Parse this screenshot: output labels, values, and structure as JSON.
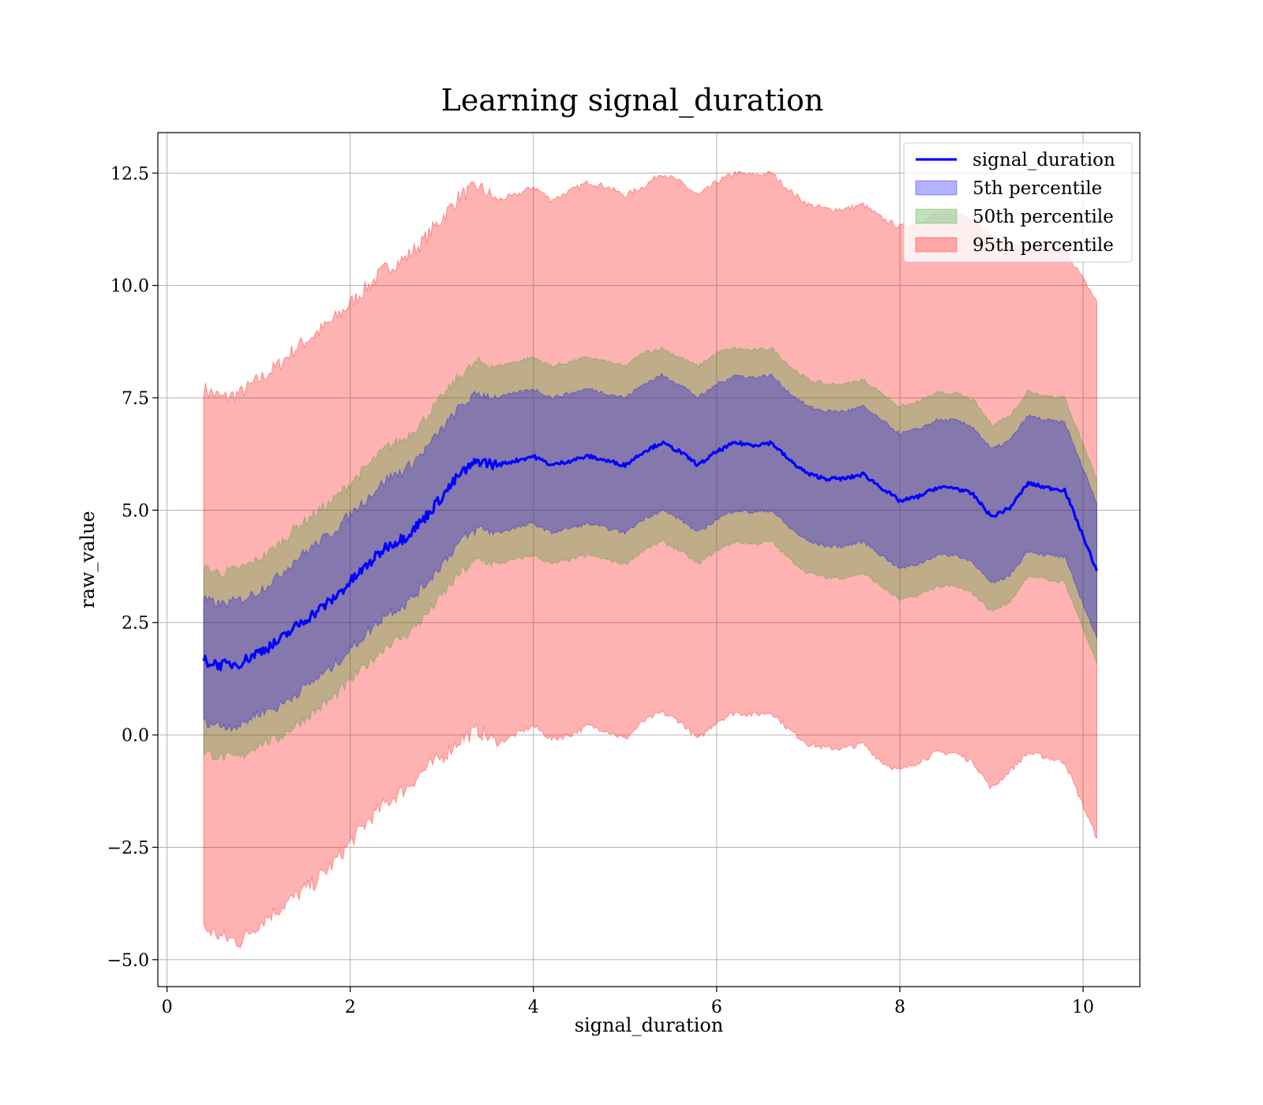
{
  "chart_data": {
    "type": "area",
    "title": "Learning signal_duration",
    "xlabel": "signal_duration",
    "ylabel": "raw_value",
    "xlim": [
      -0.1,
      10.62
    ],
    "ylim": [
      -5.6,
      13.4
    ],
    "x_ticks": [
      0,
      2,
      4,
      6,
      8,
      10
    ],
    "y_ticks": [
      -5.0,
      -2.5,
      0.0,
      2.5,
      5.0,
      7.5,
      10.0,
      12.5
    ],
    "x_tick_labels": [
      "0",
      "2",
      "4",
      "6",
      "8",
      "10"
    ],
    "y_tick_labels": [
      "−5.0",
      "−2.5",
      "0.0",
      "2.5",
      "5.0",
      "7.5",
      "10.0",
      "12.5"
    ],
    "grid": true,
    "legend_position": "top-right",
    "colors": {
      "line": "#0000ff",
      "p5": "#0000ff",
      "p50": "#2ca02c",
      "p95": "#ff0000"
    },
    "legend": [
      {
        "label": "signal_duration",
        "kind": "line",
        "color": "#0000ff"
      },
      {
        "label": "5th percentile",
        "kind": "patch",
        "color": "#0000ff"
      },
      {
        "label": "50th percentile",
        "kind": "patch",
        "color": "#2ca02c"
      },
      {
        "label": "95th percentile",
        "kind": "patch",
        "color": "#ff0000"
      }
    ],
    "x": [
      0.4,
      0.6,
      0.8,
      1.0,
      1.2,
      1.4,
      1.6,
      1.8,
      2.0,
      2.2,
      2.4,
      2.6,
      2.8,
      3.0,
      3.2,
      3.4,
      3.6,
      3.8,
      4.0,
      4.2,
      4.4,
      4.6,
      4.8,
      5.0,
      5.2,
      5.4,
      5.6,
      5.8,
      6.0,
      6.2,
      6.4,
      6.6,
      6.8,
      7.0,
      7.2,
      7.4,
      7.6,
      7.8,
      8.0,
      8.2,
      8.4,
      8.6,
      8.8,
      9.0,
      9.2,
      9.4,
      9.6,
      9.8,
      10.15
    ],
    "series": [
      {
        "name": "signal_duration",
        "values": [
          1.65,
          1.55,
          1.6,
          1.85,
          2.05,
          2.4,
          2.7,
          3.0,
          3.4,
          3.8,
          4.2,
          4.4,
          4.8,
          5.3,
          5.8,
          6.1,
          6.0,
          6.1,
          6.2,
          6.0,
          6.1,
          6.2,
          6.1,
          6.0,
          6.3,
          6.5,
          6.3,
          6.0,
          6.3,
          6.5,
          6.45,
          6.5,
          6.1,
          5.8,
          5.7,
          5.7,
          5.8,
          5.5,
          5.2,
          5.3,
          5.5,
          5.5,
          5.35,
          4.85,
          5.05,
          5.6,
          5.5,
          5.45,
          3.65
        ]
      },
      {
        "name": "5th percentile",
        "upper": [
          3.0,
          2.9,
          3.0,
          3.2,
          3.5,
          3.9,
          4.2,
          4.5,
          4.9,
          5.3,
          5.7,
          5.9,
          6.3,
          6.8,
          7.3,
          7.6,
          7.5,
          7.6,
          7.7,
          7.5,
          7.6,
          7.7,
          7.6,
          7.5,
          7.8,
          8.0,
          7.8,
          7.5,
          7.8,
          8.0,
          7.95,
          8.0,
          7.6,
          7.3,
          7.2,
          7.2,
          7.3,
          7.0,
          6.7,
          6.8,
          7.0,
          7.0,
          6.85,
          6.35,
          6.55,
          7.1,
          7.0,
          6.95,
          5.15
        ],
        "lower": [
          0.3,
          0.2,
          0.2,
          0.5,
          0.6,
          0.9,
          1.2,
          1.5,
          1.9,
          2.3,
          2.7,
          2.9,
          3.3,
          3.8,
          4.3,
          4.6,
          4.5,
          4.6,
          4.7,
          4.5,
          4.6,
          4.7,
          4.6,
          4.5,
          4.8,
          5.0,
          4.8,
          4.5,
          4.8,
          5.0,
          4.95,
          5.0,
          4.6,
          4.3,
          4.2,
          4.2,
          4.3,
          4.0,
          3.7,
          3.8,
          4.0,
          4.0,
          3.85,
          3.35,
          3.55,
          4.1,
          4.0,
          3.95,
          2.15
        ]
      },
      {
        "name": "50th percentile",
        "upper": [
          3.7,
          3.6,
          3.7,
          3.9,
          4.2,
          4.6,
          4.9,
          5.2,
          5.6,
          6.0,
          6.4,
          6.6,
          7.0,
          7.5,
          8.0,
          8.3,
          8.2,
          8.3,
          8.4,
          8.2,
          8.3,
          8.4,
          8.3,
          8.2,
          8.5,
          8.6,
          8.4,
          8.2,
          8.5,
          8.6,
          8.55,
          8.6,
          8.2,
          7.9,
          7.8,
          7.8,
          7.9,
          7.6,
          7.3,
          7.4,
          7.6,
          7.6,
          7.45,
          6.9,
          7.1,
          7.65,
          7.55,
          7.5,
          5.7
        ],
        "lower": [
          -0.4,
          -0.5,
          -0.5,
          -0.2,
          -0.1,
          0.2,
          0.5,
          0.8,
          1.2,
          1.6,
          2.0,
          2.2,
          2.6,
          3.1,
          3.6,
          3.9,
          3.8,
          3.9,
          4.0,
          3.8,
          3.9,
          4.0,
          3.9,
          3.8,
          4.1,
          4.3,
          4.1,
          3.8,
          4.1,
          4.3,
          4.25,
          4.3,
          3.9,
          3.6,
          3.5,
          3.5,
          3.6,
          3.3,
          3.0,
          3.1,
          3.3,
          3.3,
          3.15,
          2.75,
          2.95,
          3.55,
          3.45,
          3.4,
          1.6
        ]
      },
      {
        "name": "95th percentile",
        "upper": [
          7.7,
          7.5,
          7.6,
          7.9,
          8.2,
          8.6,
          8.9,
          9.2,
          9.6,
          10.0,
          10.4,
          10.6,
          11.0,
          11.5,
          12.0,
          12.2,
          11.9,
          12.0,
          12.2,
          11.9,
          12.1,
          12.3,
          12.2,
          12.0,
          12.2,
          12.5,
          12.3,
          12.0,
          12.3,
          12.5,
          12.45,
          12.5,
          12.1,
          11.8,
          11.7,
          11.7,
          11.8,
          11.5,
          11.3,
          11.4,
          11.6,
          11.6,
          11.5,
          11.1,
          10.9,
          10.8,
          10.9,
          10.8,
          9.65
        ],
        "lower": [
          -4.3,
          -4.5,
          -4.6,
          -4.2,
          -3.9,
          -3.6,
          -3.3,
          -2.9,
          -2.4,
          -1.9,
          -1.5,
          -1.2,
          -0.8,
          -0.5,
          -0.1,
          0.1,
          -0.2,
          0.0,
          0.2,
          -0.1,
          0.0,
          0.2,
          0.1,
          -0.1,
          0.3,
          0.5,
          0.3,
          -0.1,
          0.3,
          0.5,
          0.45,
          0.5,
          0.1,
          -0.2,
          -0.3,
          -0.3,
          -0.2,
          -0.6,
          -0.8,
          -0.6,
          -0.4,
          -0.4,
          -0.6,
          -1.2,
          -0.8,
          -0.4,
          -0.5,
          -0.6,
          -2.3
        ]
      }
    ]
  }
}
